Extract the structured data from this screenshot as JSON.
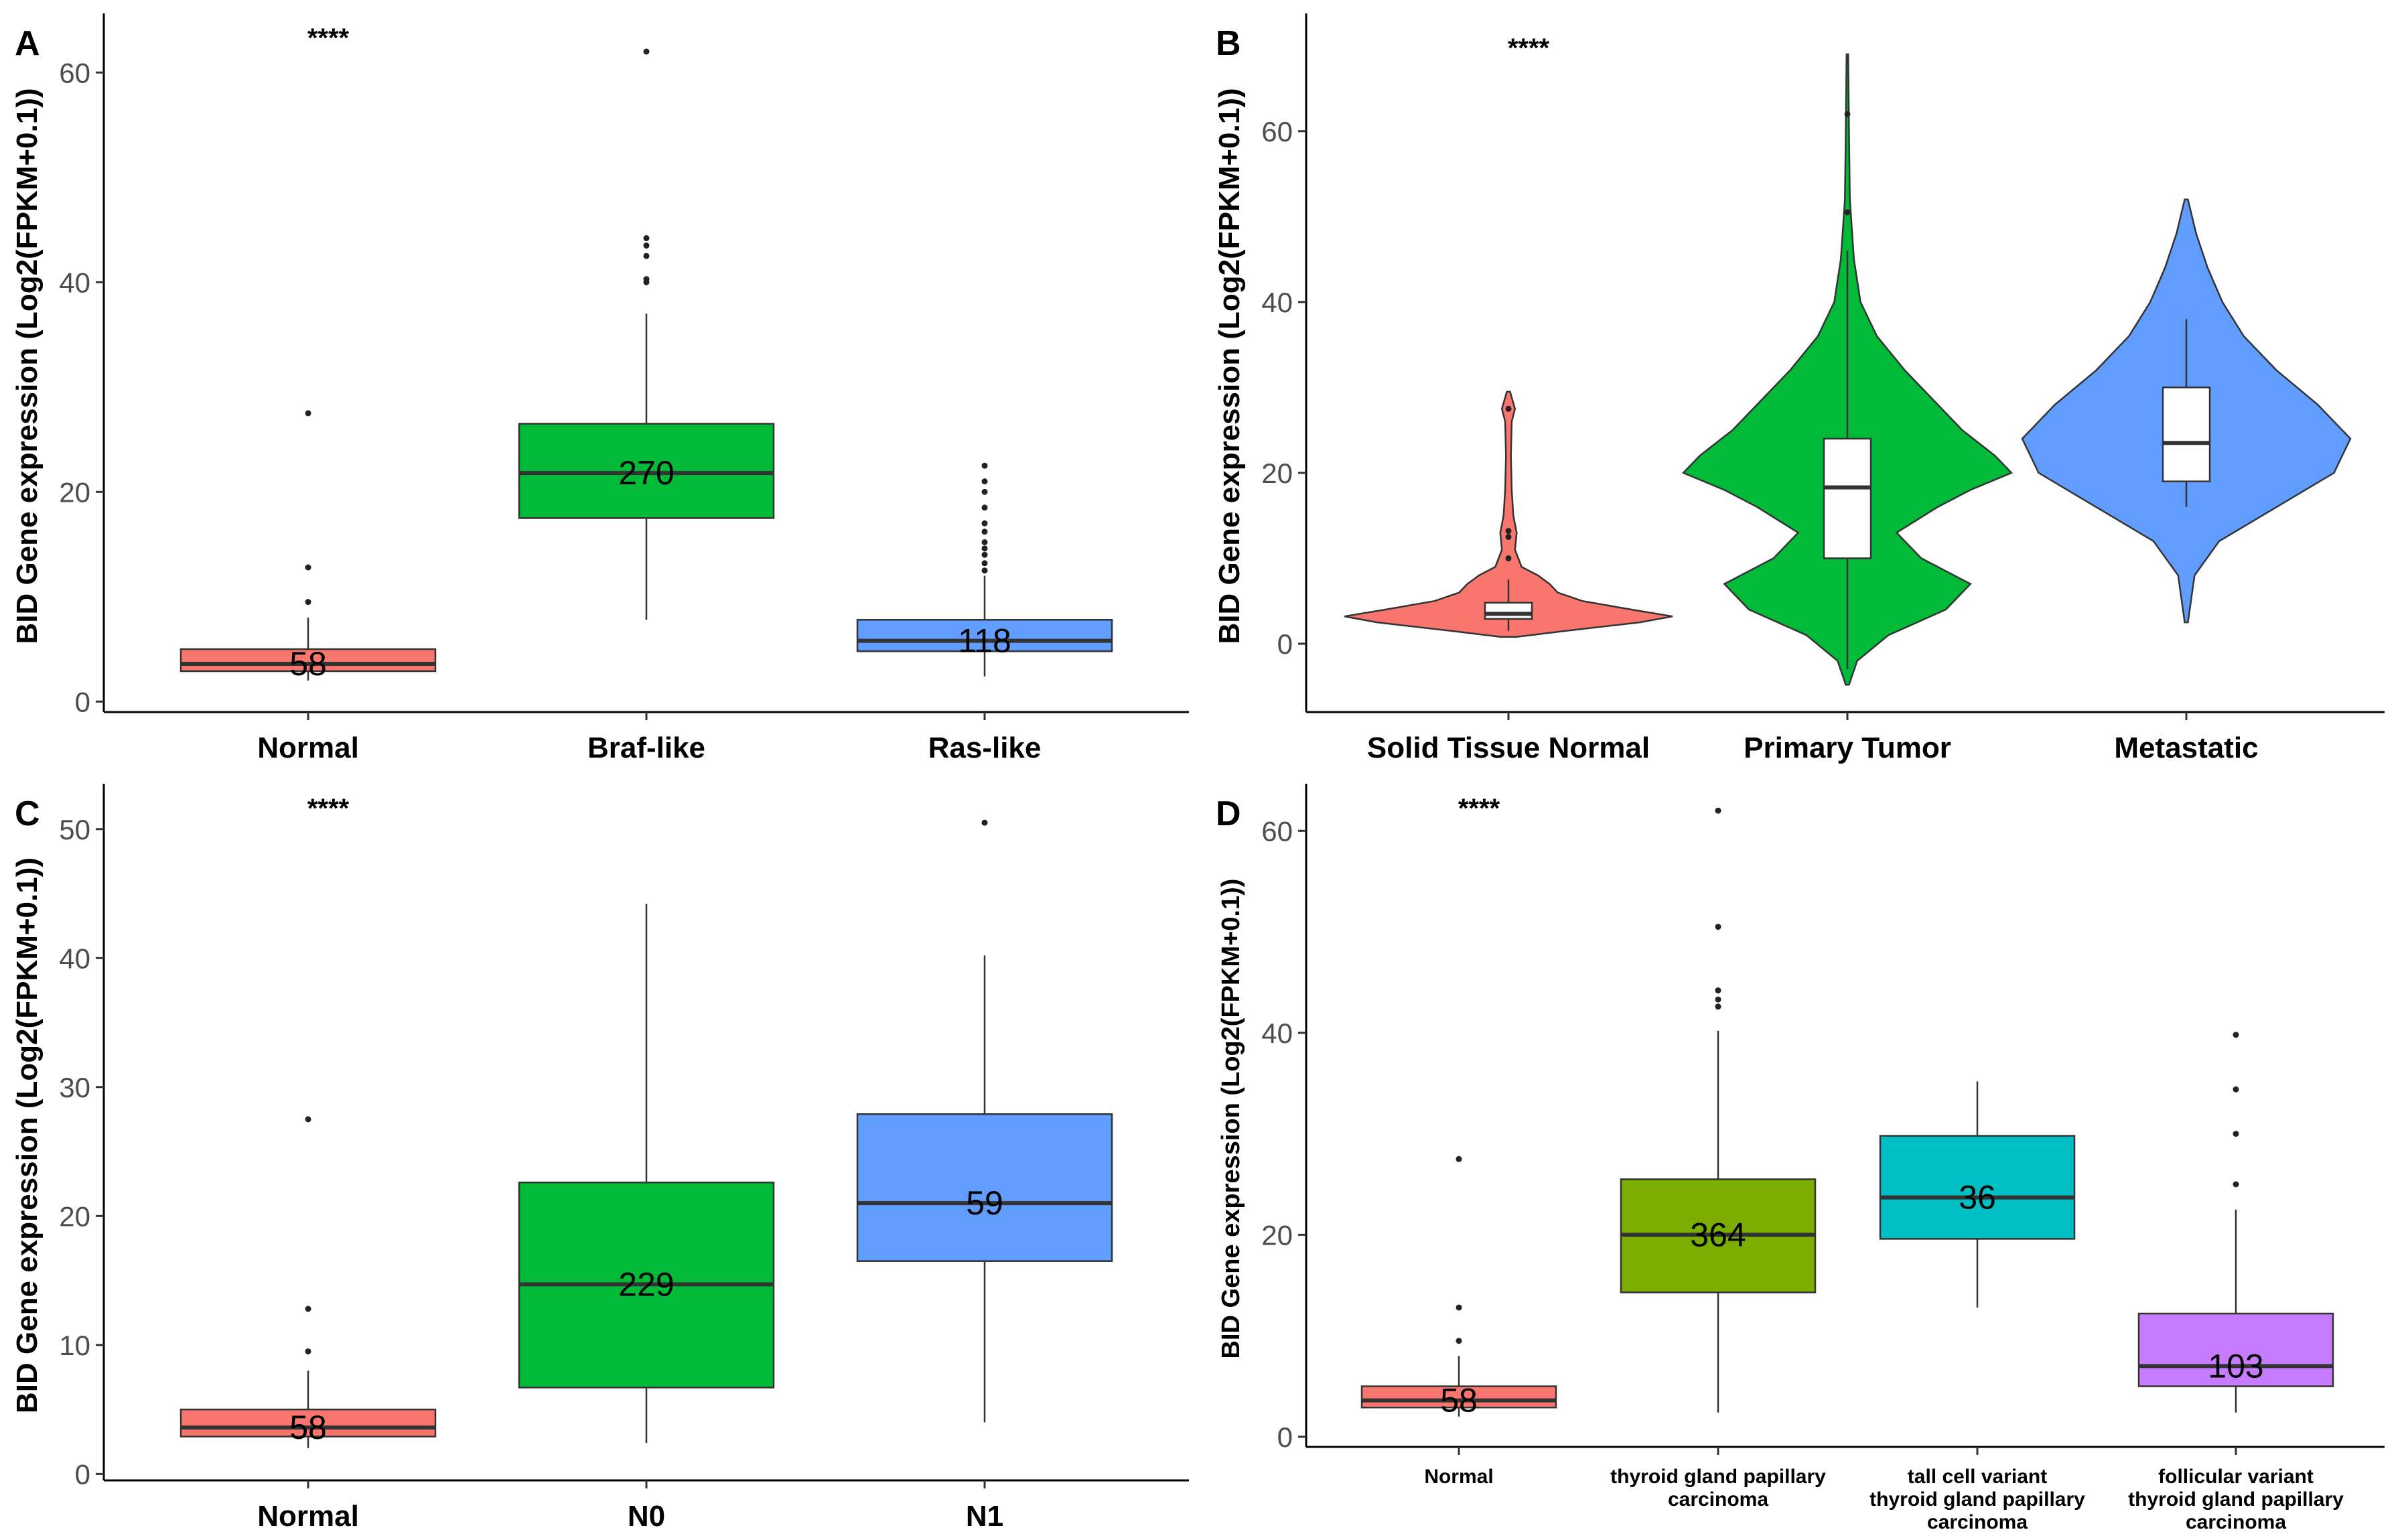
{
  "chart_data": [
    {
      "panel": "A",
      "type": "boxplot",
      "ylabel": "BID Gene expression (Log2(FPKM+0.1))",
      "ylim": [
        -1,
        65
      ],
      "yticks": [
        0,
        20,
        40,
        60
      ],
      "significance": "****",
      "categories": [
        "Normal",
        "Braf-like",
        "Ras-like"
      ],
      "colors": [
        "#F8766D",
        "#00BA38",
        "#619CFF"
      ],
      "boxes": [
        {
          "q1": 2.9,
          "median": 3.6,
          "q3": 5.0,
          "wlow": 2.0,
          "whigh": 8.0,
          "n": "58",
          "outliers": [
            9.5,
            12.8,
            27.5
          ]
        },
        {
          "q1": 17.5,
          "median": 21.8,
          "q3": 26.5,
          "wlow": 7.8,
          "whigh": 37.0,
          "n": "270",
          "outliers": [
            40.0,
            40.3,
            42.5,
            43.5,
            44.2,
            62.0
          ]
        },
        {
          "q1": 4.8,
          "median": 5.8,
          "q3": 7.8,
          "wlow": 2.4,
          "whigh": 12.0,
          "n": "118",
          "outliers": [
            12.5,
            13.2,
            14.0,
            14.6,
            15.2,
            16.2,
            17.0,
            18.5,
            20.0,
            21.0,
            22.5
          ]
        }
      ]
    },
    {
      "panel": "B",
      "type": "violin",
      "ylabel": "BID Gene expression (Log2(FPKM+0.1))",
      "ylim": [
        -8,
        73
      ],
      "yticks": [
        0,
        20,
        40,
        60
      ],
      "significance": "****",
      "categories": [
        "Solid Tissue Normal",
        "Primary Tumor",
        "Metastatic"
      ],
      "colors": [
        "#F8766D",
        "#00BA38",
        "#619CFF"
      ],
      "violins": [
        {
          "profile": [
            [
              0.8,
              0.05
            ],
            [
              1.5,
              0.35
            ],
            [
              2.5,
              0.8
            ],
            [
              3.2,
              1.0
            ],
            [
              4.0,
              0.75
            ],
            [
              5.0,
              0.45
            ],
            [
              6.0,
              0.3
            ],
            [
              7.0,
              0.25
            ],
            [
              8.0,
              0.18
            ],
            [
              9.0,
              0.08
            ],
            [
              11.0,
              0.04
            ],
            [
              13.0,
              0.05
            ],
            [
              15.0,
              0.03
            ],
            [
              18.0,
              0.02
            ],
            [
              22.0,
              0.015
            ],
            [
              26.0,
              0.02
            ],
            [
              27.5,
              0.04
            ],
            [
              29.5,
              0.01
            ]
          ],
          "q1": 2.9,
          "median": 3.5,
          "q3": 4.8,
          "wlow": 1.5,
          "whigh": 7.5,
          "outliers": [
            10.0,
            12.5,
            13.2,
            27.5
          ]
        },
        {
          "profile": [
            [
              -4.8,
              0.01
            ],
            [
              -2.0,
              0.06
            ],
            [
              1.0,
              0.25
            ],
            [
              4.0,
              0.6
            ],
            [
              7.0,
              0.75
            ],
            [
              10.0,
              0.45
            ],
            [
              13.0,
              0.3
            ],
            [
              16.0,
              0.55
            ],
            [
              18.0,
              0.75
            ],
            [
              20.0,
              1.0
            ],
            [
              22.0,
              0.9
            ],
            [
              25.0,
              0.7
            ],
            [
              28.0,
              0.55
            ],
            [
              32.0,
              0.35
            ],
            [
              36.0,
              0.18
            ],
            [
              40.0,
              0.08
            ],
            [
              45.0,
              0.04
            ],
            [
              52.0,
              0.015
            ],
            [
              60.0,
              0.01
            ],
            [
              69.0,
              0.005
            ]
          ],
          "q1": 10.0,
          "median": 18.3,
          "q3": 24.0,
          "wlow": -3.0,
          "whigh": 46.0,
          "outliers": [
            50.5,
            62.0
          ]
        },
        {
          "profile": [
            [
              2.5,
              0.01
            ],
            [
              8.0,
              0.05
            ],
            [
              12.0,
              0.2
            ],
            [
              16.0,
              0.55
            ],
            [
              20.0,
              0.9
            ],
            [
              24.0,
              1.0
            ],
            [
              28.0,
              0.8
            ],
            [
              32.0,
              0.55
            ],
            [
              36.0,
              0.35
            ],
            [
              40.0,
              0.22
            ],
            [
              44.0,
              0.13
            ],
            [
              48.0,
              0.06
            ],
            [
              52.0,
              0.01
            ]
          ],
          "q1": 19.0,
          "median": 23.5,
          "q3": 30.0,
          "wlow": 16.0,
          "whigh": 38.0,
          "outliers": []
        }
      ]
    },
    {
      "panel": "C",
      "type": "boxplot",
      "ylabel": "BID Gene expression (Log2(FPKM+0.1))",
      "ylim": [
        -0.5,
        53
      ],
      "yticks": [
        0,
        10,
        20,
        30,
        40,
        50
      ],
      "significance": "****",
      "categories": [
        "Normal",
        "N0",
        "N1"
      ],
      "colors": [
        "#F8766D",
        "#00BA38",
        "#619CFF"
      ],
      "boxes": [
        {
          "q1": 2.9,
          "median": 3.6,
          "q3": 5.0,
          "wlow": 2.0,
          "whigh": 8.0,
          "n": "58",
          "outliers": [
            9.5,
            12.8,
            27.5
          ]
        },
        {
          "q1": 6.7,
          "median": 14.7,
          "q3": 22.6,
          "wlow": 2.4,
          "whigh": 44.2,
          "n": "229",
          "outliers": []
        },
        {
          "q1": 16.5,
          "median": 21.0,
          "q3": 27.9,
          "wlow": 4.0,
          "whigh": 40.2,
          "n": "59",
          "outliers": [
            50.5
          ]
        }
      ]
    },
    {
      "panel": "D",
      "type": "boxplot",
      "ylabel": "BID Gene expression (Log2(FPKM+0.1))",
      "ylim": [
        -1,
        64
      ],
      "yticks": [
        0,
        20,
        40,
        60
      ],
      "significance": "****",
      "categories": [
        [
          "Normal"
        ],
        [
          "thyroid gland papillary",
          "carcinoma"
        ],
        [
          "tall cell variant",
          "thyroid gland papillary",
          "carcinoma"
        ],
        [
          "follicular variant",
          "thyroid gland papillary",
          "carcinoma"
        ]
      ],
      "colors": [
        "#F8766D",
        "#7CAE00",
        "#00BFC4",
        "#C77CFF"
      ],
      "boxes": [
        {
          "q1": 2.9,
          "median": 3.6,
          "q3": 5.0,
          "wlow": 2.0,
          "whigh": 8.0,
          "n": "58",
          "outliers": [
            9.5,
            12.8,
            27.5
          ]
        },
        {
          "q1": 14.3,
          "median": 20.0,
          "q3": 25.5,
          "wlow": 2.4,
          "whigh": 40.2,
          "n": "364",
          "outliers": [
            42.6,
            43.3,
            44.2,
            50.5,
            62.0
          ]
        },
        {
          "q1": 19.6,
          "median": 23.7,
          "q3": 29.8,
          "wlow": 12.8,
          "whigh": 35.2,
          "n": "36",
          "outliers": []
        },
        {
          "q1": 5.0,
          "median": 7.0,
          "q3": 12.2,
          "wlow": 2.4,
          "whigh": 22.5,
          "n": "103",
          "outliers": [
            25.0,
            30.0,
            34.4,
            39.8
          ]
        }
      ]
    }
  ]
}
